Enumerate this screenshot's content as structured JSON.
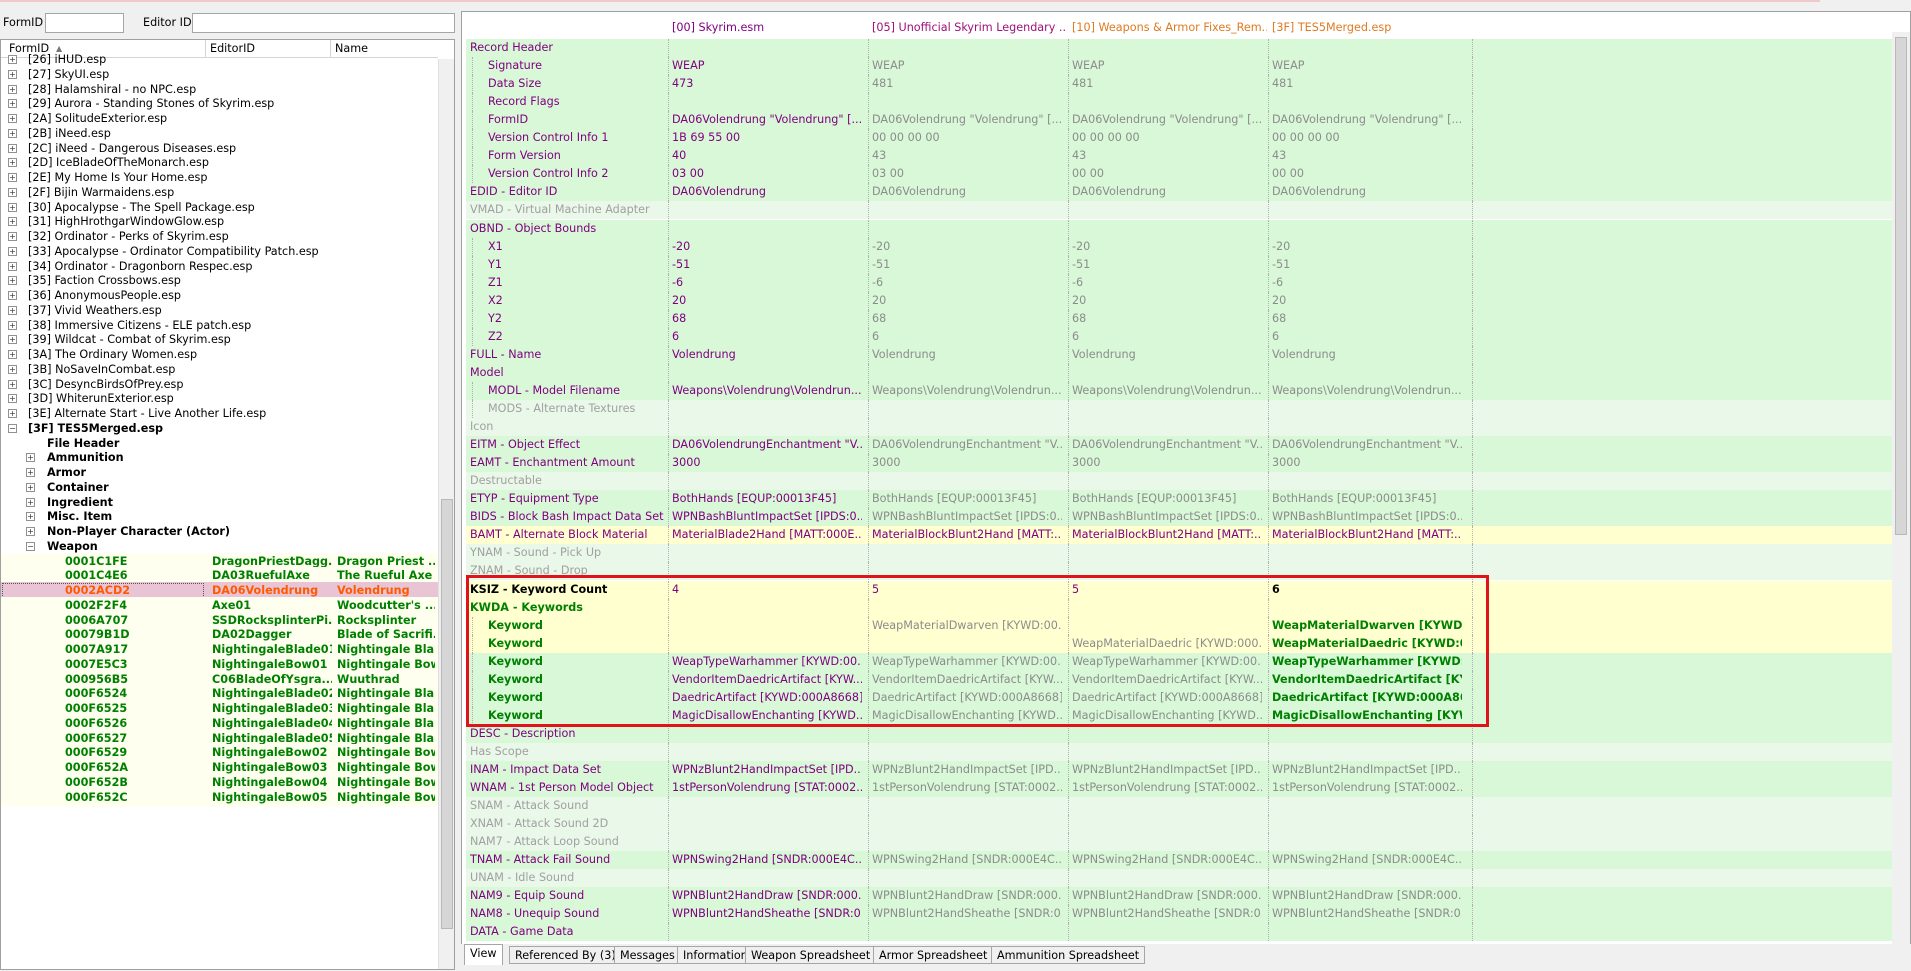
{
  "toolbar": {
    "formid_label": "FormID",
    "editorid_label": "Editor ID"
  },
  "left": {
    "columns": [
      "FormID",
      "EditorID",
      "Name"
    ],
    "plugins": [
      "[26] iHUD.esp",
      "[27] SkyUI.esp",
      "[28] Halamshiral - no NPC.esp",
      "[29] Aurora - Standing Stones of Skyrim.esp",
      "[2A] SolitudeExterior.esp",
      "[2B] iNeed.esp",
      "[2C] iNeed - Dangerous Diseases.esp",
      "[2D] IceBladeOfTheMonarch.esp",
      "[2E] My Home Is Your Home.esp",
      "[2F] Bijin Warmaidens.esp",
      "[30] Apocalypse - The Spell Package.esp",
      "[31] HighHrothgarWindowGlow.esp",
      "[32] Ordinator - Perks of Skyrim.esp",
      "[33] Apocalypse - Ordinator Compatibility Patch.esp",
      "[34] Ordinator - Dragonborn Respec.esp",
      "[35] Faction Crossbows.esp",
      "[36] AnonymousPeople.esp",
      "[37] Vivid Weathers.esp",
      "[38] Immersive Citizens - ELE patch.esp",
      "[39] Wildcat - Combat of Skyrim.esp",
      "[3A] The Ordinary Women.esp",
      "[3B] NoSaveInCombat.esp",
      "[3C] DesyncBirdsOfPrey.esp",
      "[3D] WhiterunExterior.esp",
      "[3E] Alternate Start - Live Another Life.esp"
    ],
    "open_plugin": "[3F] TES5Merged.esp",
    "groups": [
      "File Header",
      "Ammunition",
      "Armor",
      "Container",
      "Ingredient",
      "Misc. Item",
      "Non-Player Character (Actor)",
      "Weapon"
    ],
    "weapons": [
      {
        "formid": "0001C1FE",
        "editorid": "DragonPriestDagg...",
        "name": "Dragon Priest ..."
      },
      {
        "formid": "0001C4E6",
        "editorid": "DA03RuefulAxe",
        "name": "The Rueful Axe"
      },
      {
        "formid": "0002ACD2",
        "editorid": "DA06Volendrung",
        "name": "Volendrung"
      },
      {
        "formid": "0002F2F4",
        "editorid": "Axe01",
        "name": "Woodcutter's ..."
      },
      {
        "formid": "0006A707",
        "editorid": "SSDRocksplinterPi...",
        "name": "Rocksplinter"
      },
      {
        "formid": "00079B1D",
        "editorid": "DA02Dagger",
        "name": "Blade of Sacrifi..."
      },
      {
        "formid": "0007A917",
        "editorid": "NightingaleBlade01",
        "name": "Nightingale Bla..."
      },
      {
        "formid": "0007E5C3",
        "editorid": "NightingaleBow01",
        "name": "Nightingale Bow"
      },
      {
        "formid": "000956B5",
        "editorid": "C06BladeOfYsgra...",
        "name": "Wuuthrad"
      },
      {
        "formid": "000F6524",
        "editorid": "NightingaleBlade02",
        "name": "Nightingale Bla..."
      },
      {
        "formid": "000F6525",
        "editorid": "NightingaleBlade03",
        "name": "Nightingale Bla..."
      },
      {
        "formid": "000F6526",
        "editorid": "NightingaleBlade04",
        "name": "Nightingale Bla..."
      },
      {
        "formid": "000F6527",
        "editorid": "NightingaleBlade05",
        "name": "Nightingale Bla..."
      },
      {
        "formid": "000F6529",
        "editorid": "NightingaleBow02",
        "name": "Nightingale Bow"
      },
      {
        "formid": "000F652A",
        "editorid": "NightingaleBow03",
        "name": "Nightingale Bow"
      },
      {
        "formid": "000F652B",
        "editorid": "NightingaleBow04",
        "name": "Nightingale Bow"
      },
      {
        "formid": "000F652C",
        "editorid": "NightingaleBow05",
        "name": "Nightingale Bow"
      }
    ],
    "selected_formid": "0002ACD2"
  },
  "right": {
    "columns": [
      "[00] Skyrim.esm",
      "[05] Unofficial Skyrim Legendary ...",
      "[10] Weapons & Armor Fixes_Rem...",
      "[3F] TES5Merged.esp"
    ],
    "column_colors": [
      "#800080",
      "#a0107a",
      "#e07a20",
      "#e07a20"
    ],
    "rows": [
      {
        "name": "Record Header",
        "indent": 0,
        "bg": "g",
        "nc": "#800080",
        "vals": [
          "",
          "",
          "",
          ""
        ]
      },
      {
        "name": "Signature",
        "indent": 1,
        "bg": "g",
        "nc": "#800080",
        "vals": [
          "WEAP",
          "WEAP",
          "WEAP",
          "WEAP"
        ]
      },
      {
        "name": "Data Size",
        "indent": 1,
        "bg": "g",
        "nc": "#800080",
        "vals": [
          "473",
          "481",
          "481",
          "481"
        ]
      },
      {
        "name": "Record Flags",
        "indent": 1,
        "bg": "g",
        "nc": "#800080",
        "vals": [
          "",
          "",
          "",
          ""
        ]
      },
      {
        "name": "FormID",
        "indent": 1,
        "bg": "g",
        "nc": "#800080",
        "vals": [
          "DA06Volendrung \"Volendrung\" [...",
          "DA06Volendrung \"Volendrung\" [...",
          "DA06Volendrung \"Volendrung\" [...",
          "DA06Volendrung \"Volendrung\" [..."
        ]
      },
      {
        "name": "Version Control Info 1",
        "indent": 1,
        "bg": "g",
        "nc": "#800080",
        "vals": [
          "1B 69 55 00",
          "00 00 00 00",
          "00 00 00 00",
          "00 00 00 00"
        ]
      },
      {
        "name": "Form Version",
        "indent": 1,
        "bg": "g",
        "nc": "#800080",
        "vals": [
          "40",
          "43",
          "43",
          "43"
        ]
      },
      {
        "name": "Version Control Info 2",
        "indent": 1,
        "bg": "g",
        "nc": "#800080",
        "vals": [
          "03 00",
          "03 00",
          "00 00",
          "00 00"
        ]
      },
      {
        "name": "EDID - Editor ID",
        "indent": 0,
        "bg": "g",
        "nc": "#800080",
        "vals": [
          "DA06Volendrung",
          "DA06Volendrung",
          "DA06Volendrung",
          "DA06Volendrung"
        ]
      },
      {
        "name": "VMAD - Virtual Machine Adapter",
        "indent": 0,
        "bg": "gl",
        "nc": "#a0a0a0",
        "vals": [
          "",
          "",
          "",
          ""
        ]
      },
      {
        "name": "OBND - Object Bounds",
        "indent": 0,
        "bg": "g",
        "nc": "#800080",
        "vals": [
          "",
          "",
          "",
          ""
        ]
      },
      {
        "name": "X1",
        "indent": 1,
        "bg": "g",
        "nc": "#800080",
        "vals": [
          "-20",
          "-20",
          "-20",
          "-20"
        ]
      },
      {
        "name": "Y1",
        "indent": 1,
        "bg": "g",
        "nc": "#800080",
        "vals": [
          "-51",
          "-51",
          "-51",
          "-51"
        ]
      },
      {
        "name": "Z1",
        "indent": 1,
        "bg": "g",
        "nc": "#800080",
        "vals": [
          "-6",
          "-6",
          "-6",
          "-6"
        ]
      },
      {
        "name": "X2",
        "indent": 1,
        "bg": "g",
        "nc": "#800080",
        "vals": [
          "20",
          "20",
          "20",
          "20"
        ]
      },
      {
        "name": "Y2",
        "indent": 1,
        "bg": "g",
        "nc": "#800080",
        "vals": [
          "68",
          "68",
          "68",
          "68"
        ]
      },
      {
        "name": "Z2",
        "indent": 1,
        "bg": "g",
        "nc": "#800080",
        "vals": [
          "6",
          "6",
          "6",
          "6"
        ]
      },
      {
        "name": "FULL - Name",
        "indent": 0,
        "bg": "g",
        "nc": "#800080",
        "vals": [
          "Volendrung",
          "Volendrung",
          "Volendrung",
          "Volendrung"
        ]
      },
      {
        "name": "Model",
        "indent": 0,
        "bg": "g",
        "nc": "#800080",
        "vals": [
          "",
          "",
          "",
          ""
        ]
      },
      {
        "name": "MODL - Model Filename",
        "indent": 1,
        "bg": "g",
        "nc": "#800080",
        "vals": [
          "Weapons\\Volendrung\\Volendrun...",
          "Weapons\\Volendrung\\Volendrun...",
          "Weapons\\Volendrung\\Volendrun...",
          "Weapons\\Volendrung\\Volendrun..."
        ]
      },
      {
        "name": "MODS - Alternate Textures",
        "indent": 1,
        "bg": "gl",
        "nc": "#a0a0a0",
        "vals": [
          "",
          "",
          "",
          ""
        ]
      },
      {
        "name": "Icon",
        "indent": 0,
        "bg": "gl",
        "nc": "#a0a0a0",
        "vals": [
          "",
          "",
          "",
          ""
        ]
      },
      {
        "name": "EITM - Object Effect",
        "indent": 0,
        "bg": "g",
        "nc": "#800080",
        "vals": [
          "DA06VolendrungEnchantment \"V...",
          "DA06VolendrungEnchantment \"V...",
          "DA06VolendrungEnchantment \"V...",
          "DA06VolendrungEnchantment \"V..."
        ]
      },
      {
        "name": "EAMT - Enchantment Amount",
        "indent": 0,
        "bg": "g",
        "nc": "#800080",
        "vals": [
          "3000",
          "3000",
          "3000",
          "3000"
        ]
      },
      {
        "name": "Destructable",
        "indent": 0,
        "bg": "gl",
        "nc": "#a0a0a0",
        "vals": [
          "",
          "",
          "",
          ""
        ]
      },
      {
        "name": "ETYP - Equipment Type",
        "indent": 0,
        "bg": "g",
        "nc": "#800080",
        "vals": [
          "BothHands [EQUP:00013F45]",
          "BothHands [EQUP:00013F45]",
          "BothHands [EQUP:00013F45]",
          "BothHands [EQUP:00013F45]"
        ]
      },
      {
        "name": "BIDS - Block Bash Impact Data Set",
        "indent": 0,
        "bg": "g",
        "nc": "#800080",
        "vals": [
          "WPNBashBluntImpactSet [IPDS:0...",
          "WPNBashBluntImpactSet [IPDS:0...",
          "WPNBashBluntImpactSet [IPDS:0...",
          "WPNBashBluntImpactSet [IPDS:0..."
        ]
      },
      {
        "name": "BAMT - Alternate Block Material",
        "indent": 0,
        "bg": "yl",
        "nc": "#800080",
        "vals": [
          "MaterialBlade2Hand [MATT:000E...",
          "MaterialBlockBlunt2Hand [MATT:...",
          "MaterialBlockBlunt2Hand [MATT:...",
          "MaterialBlockBlunt2Hand [MATT:..."
        ]
      },
      {
        "name": "YNAM - Sound - Pick Up",
        "indent": 0,
        "bg": "gl",
        "nc": "#a0a0a0",
        "vals": [
          "",
          "",
          "",
          ""
        ]
      },
      {
        "name": "ZNAM - Sound - Drop",
        "indent": 0,
        "bg": "gl",
        "nc": "#a0a0a0",
        "vals": [
          "",
          "",
          "",
          ""
        ]
      },
      {
        "name": "KSIZ - Keyword Count",
        "indent": 0,
        "bg": "yl",
        "nc": "#000000",
        "bold": true,
        "vals": [
          "4",
          "5",
          "5",
          "6"
        ]
      },
      {
        "name": "KWDA - Keywords",
        "indent": 0,
        "bg": "yl",
        "nc": "#008000",
        "bold": true,
        "vals": [
          "",
          "",
          "",
          ""
        ]
      },
      {
        "name": "Keyword",
        "indent": 1,
        "bg": "yl",
        "nc": "#008000",
        "bold": true,
        "vals": [
          "",
          "WeapMaterialDwarven [KYWD:00...",
          "",
          "WeapMaterialDwarven [KYWD:..."
        ]
      },
      {
        "name": "Keyword",
        "indent": 1,
        "bg": "yl",
        "nc": "#008000",
        "bold": true,
        "vals": [
          "",
          "",
          "WeapMaterialDaedric [KYWD:000...",
          "WeapMaterialDaedric [KYWD:0..."
        ]
      },
      {
        "name": "Keyword",
        "indent": 1,
        "bg": "g",
        "nc": "#008000",
        "bold": true,
        "vals": [
          "WeapTypeWarhammer [KYWD:00...",
          "WeapTypeWarhammer [KYWD:00...",
          "WeapTypeWarhammer [KYWD:00...",
          "WeapTypeWarhammer [KYWD:00..."
        ]
      },
      {
        "name": "Keyword",
        "indent": 1,
        "bg": "g",
        "nc": "#008000",
        "bold": true,
        "vals": [
          "VendorItemDaedricArtifact [KYW...",
          "VendorItemDaedricArtifact [KYW...",
          "VendorItemDaedricArtifact [KYW...",
          "VendorItemDaedricArtifact [KY..."
        ]
      },
      {
        "name": "Keyword",
        "indent": 1,
        "bg": "g",
        "nc": "#008000",
        "bold": true,
        "vals": [
          "DaedricArtifact [KYWD:000A8668]",
          "DaedricArtifact [KYWD:000A8668]",
          "DaedricArtifact [KYWD:000A8668]",
          "DaedricArtifact [KYWD:000A86..."
        ]
      },
      {
        "name": "Keyword",
        "indent": 1,
        "bg": "g",
        "nc": "#008000",
        "bold": true,
        "vals": [
          "MagicDisallowEnchanting [KYWD...",
          "MagicDisallowEnchanting [KYWD...",
          "MagicDisallowEnchanting [KYWD...",
          "MagicDisallowEnchanting [KYW..."
        ]
      },
      {
        "name": "DESC - Description",
        "indent": 0,
        "bg": "g",
        "nc": "#800080",
        "vals": [
          "",
          "",
          "",
          ""
        ]
      },
      {
        "name": "Has Scope",
        "indent": 0,
        "bg": "gl",
        "nc": "#a0a0a0",
        "vals": [
          "",
          "",
          "",
          ""
        ]
      },
      {
        "name": "INAM - Impact Data Set",
        "indent": 0,
        "bg": "g",
        "nc": "#800080",
        "vals": [
          "WPNzBlunt2HandImpactSet [IPD...",
          "WPNzBlunt2HandImpactSet [IPD...",
          "WPNzBlunt2HandImpactSet [IPD...",
          "WPNzBlunt2HandImpactSet [IPD..."
        ]
      },
      {
        "name": "WNAM - 1st Person Model Object",
        "indent": 0,
        "bg": "g",
        "nc": "#800080",
        "vals": [
          "1stPersonVolendrung [STAT:0002...",
          "1stPersonVolendrung [STAT:0002...",
          "1stPersonVolendrung [STAT:0002...",
          "1stPersonVolendrung [STAT:0002..."
        ]
      },
      {
        "name": "SNAM - Attack Sound",
        "indent": 0,
        "bg": "gl",
        "nc": "#a0a0a0",
        "vals": [
          "",
          "",
          "",
          ""
        ]
      },
      {
        "name": "XNAM - Attack Sound 2D",
        "indent": 0,
        "bg": "gl",
        "nc": "#a0a0a0",
        "vals": [
          "",
          "",
          "",
          ""
        ]
      },
      {
        "name": "NAM7 - Attack Loop Sound",
        "indent": 0,
        "bg": "gl",
        "nc": "#a0a0a0",
        "vals": [
          "",
          "",
          "",
          ""
        ]
      },
      {
        "name": "TNAM - Attack Fail Sound",
        "indent": 0,
        "bg": "g",
        "nc": "#800080",
        "vals": [
          "WPNSwing2Hand [SNDR:000E4C...",
          "WPNSwing2Hand [SNDR:000E4C...",
          "WPNSwing2Hand [SNDR:000E4C...",
          "WPNSwing2Hand [SNDR:000E4C..."
        ]
      },
      {
        "name": "UNAM - Idle Sound",
        "indent": 0,
        "bg": "gl",
        "nc": "#a0a0a0",
        "vals": [
          "",
          "",
          "",
          ""
        ]
      },
      {
        "name": "NAM9 - Equip Sound",
        "indent": 0,
        "bg": "g",
        "nc": "#800080",
        "vals": [
          "WPNBlunt2HandDraw [SNDR:000...",
          "WPNBlunt2HandDraw [SNDR:000...",
          "WPNBlunt2HandDraw [SNDR:000...",
          "WPNBlunt2HandDraw [SNDR:000..."
        ]
      },
      {
        "name": "NAM8 - Unequip Sound",
        "indent": 0,
        "bg": "g",
        "nc": "#800080",
        "vals": [
          "WPNBlunt2HandSheathe [SNDR:0...",
          "WPNBlunt2HandSheathe [SNDR:0...",
          "WPNBlunt2HandSheathe [SNDR:0...",
          "WPNBlunt2HandSheathe [SNDR:0..."
        ]
      },
      {
        "name": "DATA - Game Data",
        "indent": 0,
        "bg": "g",
        "nc": "#800080",
        "vals": [
          "",
          "",
          "",
          ""
        ]
      }
    ]
  },
  "tabs": [
    "View",
    "Referenced By (3)",
    "Messages",
    "Information",
    "Weapon Spreadsheet",
    "Armor Spreadsheet",
    "Ammunition Spreadsheet"
  ],
  "active_tab": "View"
}
